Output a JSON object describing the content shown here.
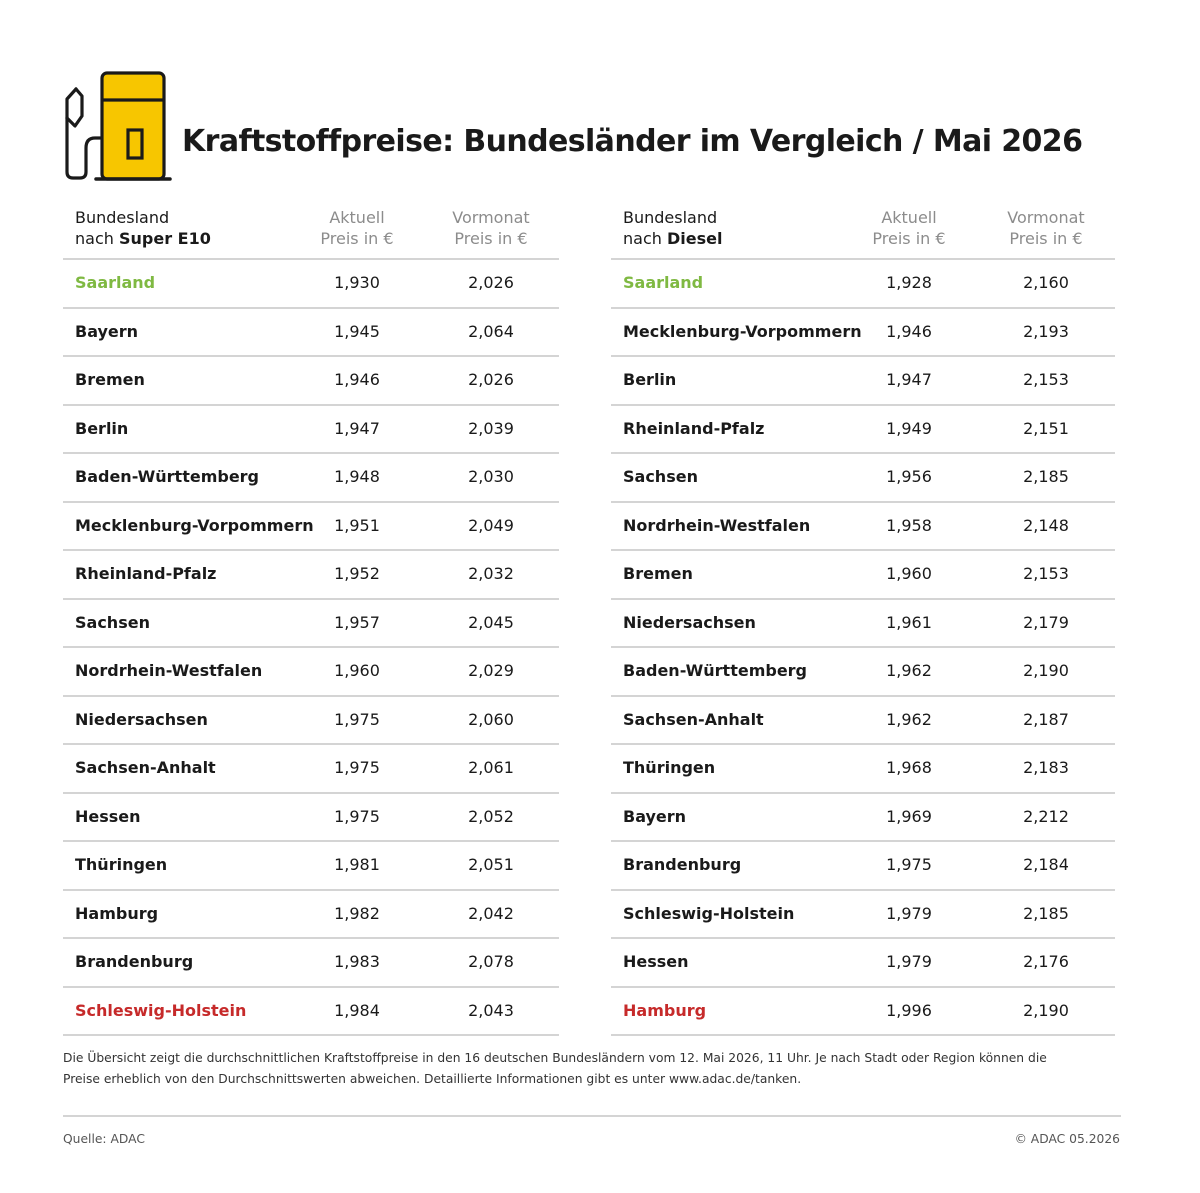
{
  "header": {
    "title": "Kraftstoffpreise: Bundesländer im Vergleich / Mai 2026"
  },
  "colors": {
    "best": "#7fb942",
    "worst": "#c62a2a",
    "pump_yellow": "#f7c600"
  },
  "icon": "fuel-pump-icon",
  "tables": {
    "e10": {
      "col_name_line1": "Bundesland",
      "col_name_prefix": "nach ",
      "col_name_fuel": "Super E10",
      "col_current_line1": "Aktuell",
      "col_current_line2": "Preis in €",
      "col_prev_line1": "Vormonat",
      "col_prev_line2": "Preis in €",
      "rows": [
        {
          "name": "Saarland",
          "current": "1,930",
          "prev": "2,026",
          "highlight": "best"
        },
        {
          "name": "Bayern",
          "current": "1,945",
          "prev": "2,064"
        },
        {
          "name": "Bremen",
          "current": "1,946",
          "prev": "2,026"
        },
        {
          "name": "Berlin",
          "current": "1,947",
          "prev": "2,039"
        },
        {
          "name": "Baden-Württemberg",
          "current": "1,948",
          "prev": "2,030"
        },
        {
          "name": "Mecklenburg-Vorpommern",
          "current": "1,951",
          "prev": "2,049"
        },
        {
          "name": "Rheinland-Pfalz",
          "current": "1,952",
          "prev": "2,032"
        },
        {
          "name": "Sachsen",
          "current": "1,957",
          "prev": "2,045"
        },
        {
          "name": "Nordrhein-Westfalen",
          "current": "1,960",
          "prev": "2,029"
        },
        {
          "name": "Niedersachsen",
          "current": "1,975",
          "prev": "2,060"
        },
        {
          "name": "Sachsen-Anhalt",
          "current": "1,975",
          "prev": "2,061"
        },
        {
          "name": "Hessen",
          "current": "1,975",
          "prev": "2,052"
        },
        {
          "name": "Thüringen",
          "current": "1,981",
          "prev": "2,051"
        },
        {
          "name": "Hamburg",
          "current": "1,982",
          "prev": "2,042"
        },
        {
          "name": "Brandenburg",
          "current": "1,983",
          "prev": "2,078"
        },
        {
          "name": "Schleswig-Holstein",
          "current": "1,984",
          "prev": "2,043",
          "highlight": "worst"
        }
      ]
    },
    "diesel": {
      "col_name_line1": "Bundesland",
      "col_name_prefix": "nach ",
      "col_name_fuel": "Diesel",
      "col_current_line1": "Aktuell",
      "col_current_line2": "Preis in €",
      "col_prev_line1": "Vormonat",
      "col_prev_line2": "Preis in €",
      "rows": [
        {
          "name": "Saarland",
          "current": "1,928",
          "prev": "2,160",
          "highlight": "best"
        },
        {
          "name": "Mecklenburg-Vorpommern",
          "current": "1,946",
          "prev": "2,193"
        },
        {
          "name": "Berlin",
          "current": "1,947",
          "prev": "2,153"
        },
        {
          "name": "Rheinland-Pfalz",
          "current": "1,949",
          "prev": "2,151"
        },
        {
          "name": "Sachsen",
          "current": "1,956",
          "prev": "2,185"
        },
        {
          "name": "Nordrhein-Westfalen",
          "current": "1,958",
          "prev": "2,148"
        },
        {
          "name": "Bremen",
          "current": "1,960",
          "prev": "2,153"
        },
        {
          "name": "Niedersachsen",
          "current": "1,961",
          "prev": "2,179"
        },
        {
          "name": "Baden-Württemberg",
          "current": "1,962",
          "prev": "2,190"
        },
        {
          "name": "Sachsen-Anhalt",
          "current": "1,962",
          "prev": "2,187"
        },
        {
          "name": "Thüringen",
          "current": "1,968",
          "prev": "2,183"
        },
        {
          "name": "Bayern",
          "current": "1,969",
          "prev": "2,212"
        },
        {
          "name": "Brandenburg",
          "current": "1,975",
          "prev": "2,184"
        },
        {
          "name": "Schleswig-Holstein",
          "current": "1,979",
          "prev": "2,185"
        },
        {
          "name": "Hessen",
          "current": "1,979",
          "prev": "2,176"
        },
        {
          "name": "Hamburg",
          "current": "1,996",
          "prev": "2,190",
          "highlight": "worst"
        }
      ]
    }
  },
  "footnote": {
    "line1": "Die Übersicht zeigt die durchschnittlichen Kraftstoffpreise in den 16 deutschen Bundesländern vom 12. Mai 2026, 11 Uhr. Je nach Stadt oder Region können die",
    "line2": "Preise erheblich von den Durchschnittswerten abweichen. Detaillierte Informationen gibt es unter www.adac.de/tanken."
  },
  "footer": {
    "source": "Quelle: ADAC",
    "copyright": "© ADAC 05.2026"
  }
}
